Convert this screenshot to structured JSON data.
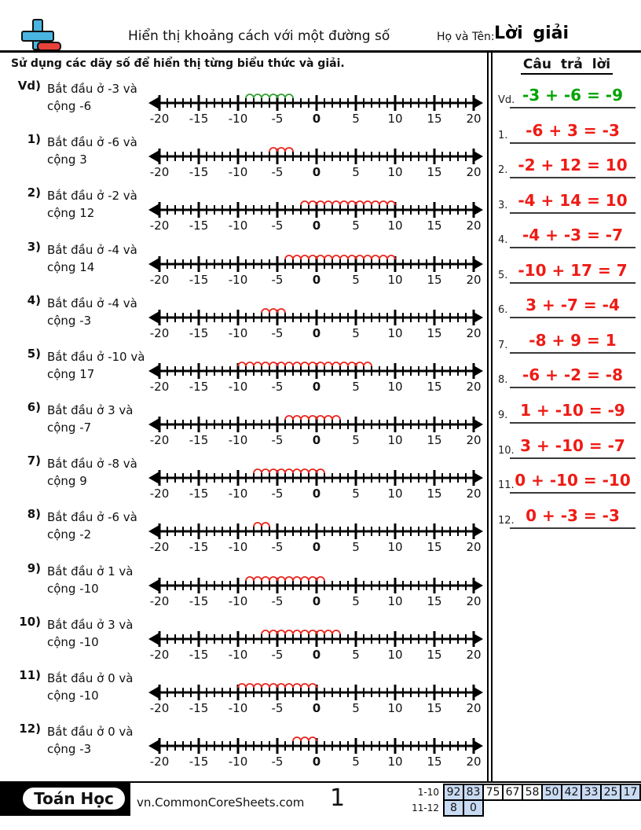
{
  "header": {
    "title": "Hiển thị khoảng cách với một đường số",
    "name_label": "Họ và Tên:",
    "name_value": "Lời giải",
    "logo_icon": "plus-minus-icon"
  },
  "instruction": "Sử dụng các dãy số để hiển thị từng biểu thức và giải.",
  "colors": {
    "answer_red": "#ee1b15",
    "answer_green": "#00a300",
    "arc_red": "#e8251d",
    "arc_green": "#33a033",
    "highlight_blue": "#c9daf3",
    "logo_blue": "#4ab5e0",
    "logo_red": "#e8413a"
  },
  "number_line": {
    "min": -20,
    "max": 20,
    "major_step": 5,
    "tick_labels": [
      "-20",
      "-15",
      "-10",
      "-5",
      "0",
      "5",
      "10",
      "15",
      "20"
    ]
  },
  "problems": [
    {
      "label": "Vd)",
      "line1": "Bắt đầu ở -3 và",
      "line2": "cộng -6",
      "start": -3,
      "add": -6,
      "arc_from": -9,
      "arc_to": -3,
      "color": "green"
    },
    {
      "label": "1)",
      "line1": "Bắt đầu ở -6 và",
      "line2": "cộng 3",
      "start": -6,
      "add": 3,
      "arc_from": -6,
      "arc_to": -3,
      "color": "red"
    },
    {
      "label": "2)",
      "line1": "Bắt đầu ở -2 và",
      "line2": "cộng 12",
      "start": -2,
      "add": 12,
      "arc_from": -2,
      "arc_to": 10,
      "color": "red"
    },
    {
      "label": "3)",
      "line1": "Bắt đầu ở -4 và",
      "line2": "cộng 14",
      "start": -4,
      "add": 14,
      "arc_from": -4,
      "arc_to": 10,
      "color": "red"
    },
    {
      "label": "4)",
      "line1": "Bắt đầu ở -4 và",
      "line2": "cộng -3",
      "start": -4,
      "add": -3,
      "arc_from": -7,
      "arc_to": -4,
      "color": "red"
    },
    {
      "label": "5)",
      "line1": "Bắt đầu ở -10 và",
      "line2": "cộng 17",
      "start": -10,
      "add": 17,
      "arc_from": -10,
      "arc_to": 7,
      "color": "red"
    },
    {
      "label": "6)",
      "line1": "Bắt đầu ở 3 và",
      "line2": "cộng -7",
      "start": 3,
      "add": -7,
      "arc_from": -4,
      "arc_to": 3,
      "color": "red"
    },
    {
      "label": "7)",
      "line1": "Bắt đầu ở -8 và",
      "line2": "cộng 9",
      "start": -8,
      "add": 9,
      "arc_from": -8,
      "arc_to": 1,
      "color": "red"
    },
    {
      "label": "8)",
      "line1": "Bắt đầu ở -6 và",
      "line2": "cộng -2",
      "start": -6,
      "add": -2,
      "arc_from": -8,
      "arc_to": -6,
      "color": "red"
    },
    {
      "label": "9)",
      "line1": "Bắt đầu ở 1 và",
      "line2": "cộng -10",
      "start": 1,
      "add": -10,
      "arc_from": -9,
      "arc_to": 1,
      "color": "red"
    },
    {
      "label": "10)",
      "line1": "Bắt đầu ở 3 và",
      "line2": "cộng -10",
      "start": 3,
      "add": -10,
      "arc_from": -7,
      "arc_to": 3,
      "color": "red"
    },
    {
      "label": "11)",
      "line1": "Bắt đầu ở 0 và",
      "line2": "cộng -10",
      "start": 0,
      "add": -10,
      "arc_from": -10,
      "arc_to": 0,
      "color": "red"
    },
    {
      "label": "12)",
      "line1": "Bắt đầu ở 0 và",
      "line2": "cộng -3",
      "start": 0,
      "add": -3,
      "arc_from": -3,
      "arc_to": 0,
      "color": "red"
    }
  ],
  "answers": {
    "title": "Câu trả lời",
    "items": [
      {
        "label": "Vd.",
        "text": "-3 + -6 = -9",
        "color": "green"
      },
      {
        "label": "1.",
        "text": "-6 + 3 = -3",
        "color": "red"
      },
      {
        "label": "2.",
        "text": "-2 + 12 = 10",
        "color": "red"
      },
      {
        "label": "3.",
        "text": "-4 + 14 = 10",
        "color": "red"
      },
      {
        "label": "4.",
        "text": "-4 + -3 = -7",
        "color": "red"
      },
      {
        "label": "5.",
        "text": "-10 + 17 = 7",
        "color": "red"
      },
      {
        "label": "6.",
        "text": "3 + -7 = -4",
        "color": "red"
      },
      {
        "label": "7.",
        "text": "-8 + 9 = 1",
        "color": "red"
      },
      {
        "label": "8.",
        "text": "-6 + -2 = -8",
        "color": "red"
      },
      {
        "label": "9.",
        "text": "1 + -10 = -9",
        "color": "red"
      },
      {
        "label": "10.",
        "text": "3 + -10 = -7",
        "color": "red"
      },
      {
        "label": "11.",
        "text": "0 + -10 = -10",
        "color": "red"
      },
      {
        "label": "12.",
        "text": "0 + -3 = -3",
        "color": "red"
      }
    ]
  },
  "footer": {
    "badge": "Toán Học",
    "site": "vn.CommonCoreSheets.com",
    "page": "1",
    "grade_table": [
      {
        "label": "1-10",
        "cells": [
          {
            "value": "92",
            "highlight": true
          },
          {
            "value": "83",
            "highlight": true
          },
          {
            "value": "75",
            "highlight": false
          },
          {
            "value": "67",
            "highlight": false
          },
          {
            "value": "58",
            "highlight": false
          },
          {
            "value": "50",
            "highlight": true
          },
          {
            "value": "42",
            "highlight": true
          },
          {
            "value": "33",
            "highlight": true
          },
          {
            "value": "25",
            "highlight": true
          },
          {
            "value": "17",
            "highlight": true
          }
        ]
      },
      {
        "label": "11-12",
        "cells": [
          {
            "value": "8",
            "highlight": true
          },
          {
            "value": "0",
            "highlight": true
          }
        ]
      }
    ]
  }
}
